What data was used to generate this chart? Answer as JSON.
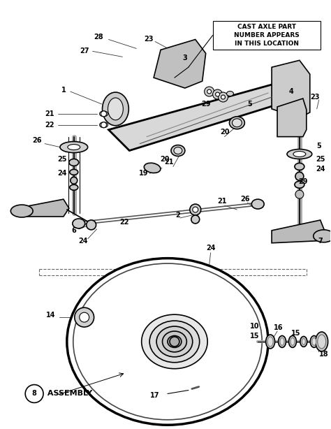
{
  "background_color": "#ffffff",
  "annotation_color": "#000000",
  "figsize": [
    4.74,
    6.14
  ],
  "dpi": 100,
  "callout_text": "CAST AXLE PART\nNUMBER APPEARS\nIN THIS LOCATION",
  "assembly_num": "8",
  "assembly_text": " ASSEMBLY"
}
